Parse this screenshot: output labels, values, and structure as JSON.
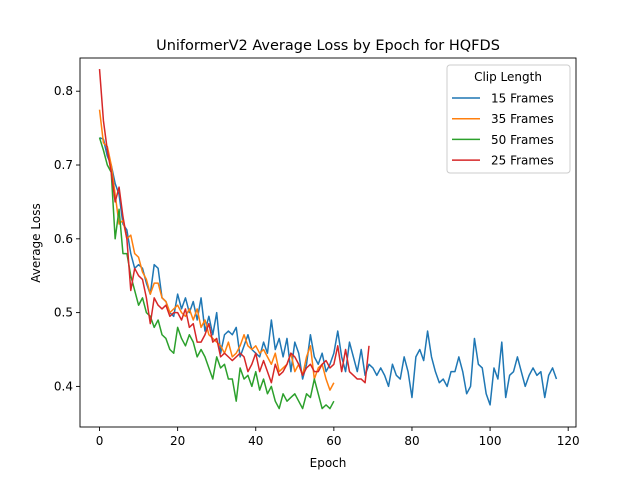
{
  "chart_data": {
    "type": "line",
    "title": "UniformerV2 Average Loss by Epoch for HQFDS",
    "xlabel": "Epoch",
    "ylabel": "Average Loss",
    "xlim": [
      -5,
      122
    ],
    "ylim": [
      0.345,
      0.845
    ],
    "xticks": [
      0,
      20,
      40,
      60,
      80,
      100,
      120
    ],
    "yticks": [
      0.4,
      0.5,
      0.6,
      0.7,
      0.8
    ],
    "grid": false,
    "legend": {
      "title": "Clip Length",
      "placement": "top-right"
    },
    "series": [
      {
        "name": "15 Frames",
        "color": "#1f77b4",
        "values": [
          0.737,
          0.735,
          0.712,
          0.7,
          0.675,
          0.66,
          0.62,
          0.612,
          0.58,
          0.56,
          0.565,
          0.56,
          0.54,
          0.525,
          0.565,
          0.56,
          0.52,
          0.515,
          0.5,
          0.495,
          0.525,
          0.505,
          0.52,
          0.5,
          0.515,
          0.49,
          0.52,
          0.475,
          0.495,
          0.47,
          0.5,
          0.445,
          0.47,
          0.475,
          0.47,
          0.48,
          0.44,
          0.455,
          0.47,
          0.45,
          0.445,
          0.44,
          0.46,
          0.445,
          0.49,
          0.45,
          0.465,
          0.44,
          0.465,
          0.42,
          0.46,
          0.445,
          0.41,
          0.43,
          0.47,
          0.44,
          0.43,
          0.445,
          0.42,
          0.43,
          0.445,
          0.475,
          0.44,
          0.42,
          0.46,
          0.44,
          0.42,
          0.45,
          0.415,
          0.43,
          0.425,
          0.415,
          0.425,
          0.415,
          0.4,
          0.43,
          0.415,
          0.41,
          0.44,
          0.42,
          0.385,
          0.44,
          0.45,
          0.435,
          0.475,
          0.44,
          0.42,
          0.405,
          0.41,
          0.4,
          0.42,
          0.42,
          0.44,
          0.42,
          0.39,
          0.4,
          0.465,
          0.43,
          0.425,
          0.39,
          0.375,
          0.425,
          0.41,
          0.46,
          0.385,
          0.415,
          0.42,
          0.44,
          0.42,
          0.4,
          0.415,
          0.425,
          0.415,
          0.42,
          0.385,
          0.415,
          0.425,
          0.41
        ]
      },
      {
        "name": "35 Frames",
        "color": "#ff7f0e",
        "values": [
          0.775,
          0.73,
          0.725,
          0.7,
          0.66,
          0.62,
          0.625,
          0.6,
          0.605,
          0.58,
          0.575,
          0.555,
          0.545,
          0.525,
          0.54,
          0.54,
          0.52,
          0.515,
          0.5,
          0.505,
          0.51,
          0.5,
          0.495,
          0.505,
          0.49,
          0.505,
          0.48,
          0.49,
          0.47,
          0.465,
          0.46,
          0.455,
          0.445,
          0.46,
          0.44,
          0.445,
          0.455,
          0.47,
          0.455,
          0.45,
          0.455,
          0.445,
          0.45,
          0.44,
          0.43,
          0.445,
          0.42,
          0.425,
          0.43,
          0.445,
          0.42,
          0.43,
          0.415,
          0.44,
          0.455,
          0.41,
          0.425,
          0.43,
          0.41,
          0.395,
          0.405
        ]
      },
      {
        "name": "50 Frames",
        "color": "#2ca02c",
        "values": [
          0.737,
          0.72,
          0.7,
          0.69,
          0.6,
          0.64,
          0.58,
          0.58,
          0.55,
          0.53,
          0.51,
          0.52,
          0.5,
          0.495,
          0.48,
          0.49,
          0.47,
          0.465,
          0.45,
          0.445,
          0.48,
          0.465,
          0.455,
          0.47,
          0.46,
          0.44,
          0.45,
          0.44,
          0.425,
          0.41,
          0.44,
          0.425,
          0.43,
          0.41,
          0.41,
          0.38,
          0.425,
          0.41,
          0.415,
          0.4,
          0.42,
          0.395,
          0.41,
          0.39,
          0.4,
          0.38,
          0.37,
          0.39,
          0.38,
          0.385,
          0.39,
          0.38,
          0.37,
          0.39,
          0.385,
          0.41,
          0.39,
          0.37,
          0.375,
          0.37,
          0.38
        ]
      },
      {
        "name": "25 Frames",
        "color": "#d62728",
        "values": [
          0.83,
          0.76,
          0.72,
          0.69,
          0.65,
          0.67,
          0.63,
          0.6,
          0.53,
          0.56,
          0.55,
          0.545,
          0.52,
          0.485,
          0.52,
          0.51,
          0.505,
          0.51,
          0.495,
          0.5,
          0.5,
          0.49,
          0.505,
          0.48,
          0.485,
          0.46,
          0.46,
          0.47,
          0.485,
          0.46,
          0.465,
          0.44,
          0.445,
          0.44,
          0.435,
          0.44,
          0.445,
          0.44,
          0.42,
          0.43,
          0.445,
          0.42,
          0.435,
          0.42,
          0.405,
          0.43,
          0.415,
          0.42,
          0.43,
          0.445,
          0.44,
          0.43,
          0.415,
          0.425,
          0.43,
          0.42,
          0.42,
          0.43,
          0.435,
          0.425,
          0.43,
          0.455,
          0.42,
          0.45,
          0.42,
          0.415,
          0.41,
          0.41,
          0.405,
          0.455
        ]
      }
    ]
  }
}
